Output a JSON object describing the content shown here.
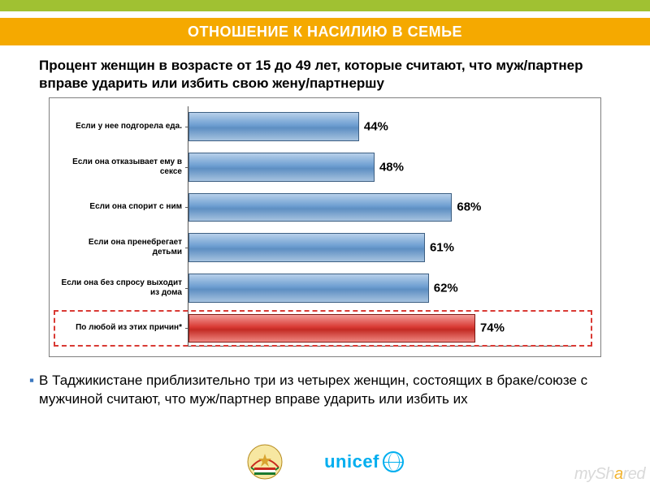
{
  "header": {
    "green_color": "#a0c132",
    "title_bg": "#f5a900",
    "title": "ОТНОШЕНИЕ К НАСИЛИЮ В СЕМЬЕ"
  },
  "subtitle": "Процент женщин в возрасте от 15 до 49 лет, которые считают, что муж/партнер вправе ударить или избить свою жену/партнершу",
  "chart": {
    "type": "bar",
    "orientation": "horizontal",
    "xlim": [
      0,
      100
    ],
    "background_color": "#ffffff",
    "axis_color": "#5a5a5a",
    "label_fontsize": 10,
    "value_fontsize": 15,
    "bar_blue_gradient": [
      "#b8d0ea",
      "#6d9ed1",
      "#5e8fc2",
      "#a6c3e0"
    ],
    "bar_blue_border": "#3d5f82",
    "bar_red_gradient": [
      "#f29b97",
      "#d93a34",
      "#c32b24",
      "#ef8781"
    ],
    "bar_red_border": "#7e1712",
    "highlight_color": "#d93a34",
    "rows": [
      {
        "label": "Если у нее подгорела еда.",
        "value": 44,
        "display": "44%",
        "color": "blue"
      },
      {
        "label": "Если она отказывает ему в сексе",
        "value": 48,
        "display": "48%",
        "color": "blue"
      },
      {
        "label": "Если она спорит с ним",
        "value": 68,
        "display": "68%",
        "color": "blue"
      },
      {
        "label": "Если она пренебрегает детьми",
        "value": 61,
        "display": "61%",
        "color": "blue"
      },
      {
        "label": "Если она без спросу выходит из дома",
        "value": 62,
        "display": "62%",
        "color": "blue"
      },
      {
        "label": "По любой из этих причин*",
        "value": 74,
        "display": "74%",
        "color": "red",
        "highlight": true
      }
    ]
  },
  "footnote": "В Таджикистане приблизительно три из четырех женщин, состоящих в браке/союзе с мужчиной считают, что муж/партнер вправе ударить или избить их",
  "logos": {
    "unicef_text": "unicef",
    "unicef_color": "#00aeef"
  },
  "watermark": {
    "pre": "mySh",
    "accent": "a",
    "post": "red"
  }
}
